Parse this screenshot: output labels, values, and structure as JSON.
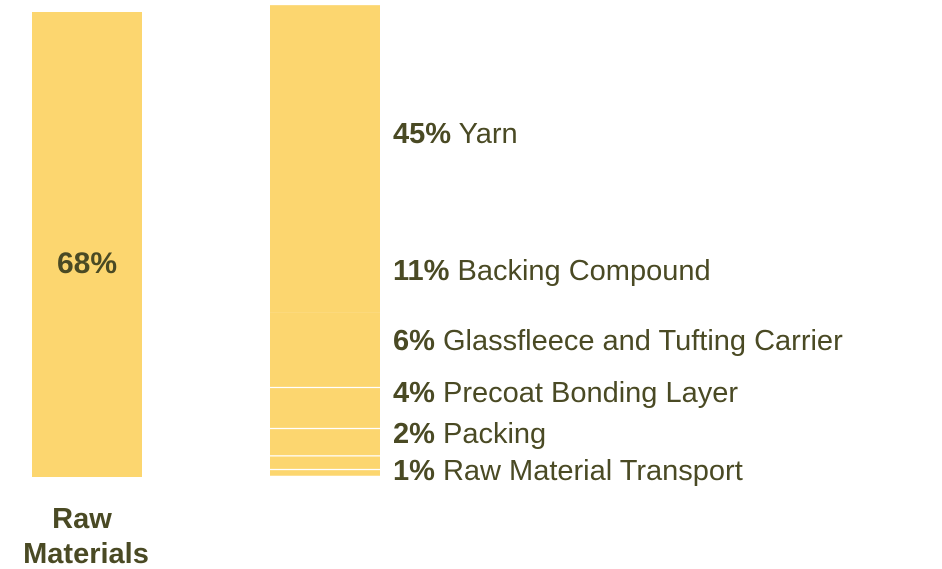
{
  "chart_data": {
    "type": "bar",
    "colors": {
      "bar": "#fcd66f",
      "divider": "#ffffff",
      "text": "#4a4a24"
    },
    "main_bar": {
      "value": 68,
      "value_label": "68%",
      "category_lines": [
        "Raw",
        "Materials"
      ]
    },
    "breakdown": [
      {
        "value": 45,
        "pct": "45%",
        "name": "Yarn"
      },
      {
        "value": 11,
        "pct": "11%",
        "name": "Backing Compound"
      },
      {
        "value": 6,
        "pct": "6%",
        "name": "Glassfleece and Tufting Carrier"
      },
      {
        "value": 4,
        "pct": "4%",
        "name": "Precoat Bonding Layer"
      },
      {
        "value": 2,
        "pct": "2%",
        "name": "Packing"
      },
      {
        "value": 1,
        "pct": "1%",
        "name": "Raw Material Transport"
      }
    ]
  }
}
